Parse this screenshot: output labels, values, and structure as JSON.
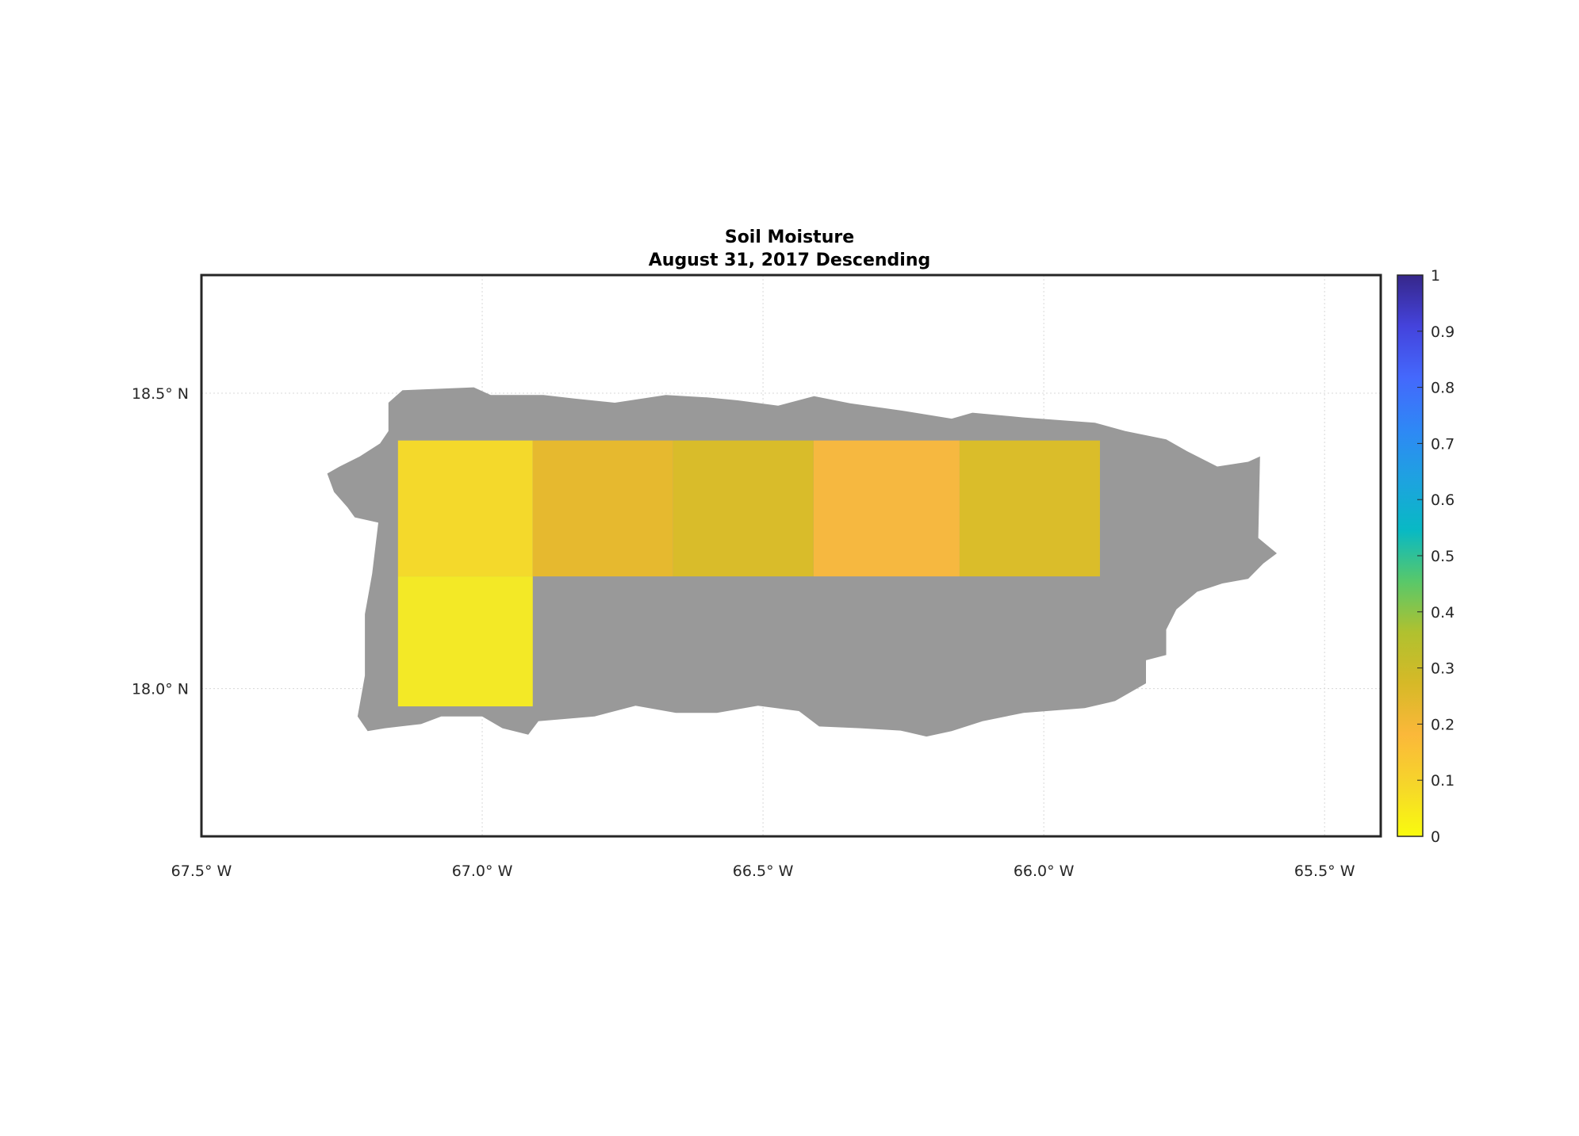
{
  "chart_data": {
    "type": "heatmap",
    "title": "Soil Moisture",
    "subtitle": "August 31, 2017 Descending",
    "xlabel": "",
    "ylabel": "",
    "xlim": [
      -67.5,
      -65.4
    ],
    "ylim": [
      17.75,
      18.7
    ],
    "grid": true,
    "x_ticks": [
      -67.5,
      -67.0,
      -66.5,
      -66.0,
      -65.5
    ],
    "x_tick_labels": [
      "67.5° W",
      "67.0° W",
      "66.5° W",
      "66.0° W",
      "65.5° W"
    ],
    "y_ticks": [
      18.0,
      18.5
    ],
    "y_tick_labels": [
      "18.0° N",
      "18.5° N"
    ],
    "land_color": "#999999",
    "cells": [
      {
        "lon": [
          -67.15,
          -66.91
        ],
        "lat": [
          18.19,
          18.42
        ],
        "value": 0.1,
        "color": "#f4d92b"
      },
      {
        "lon": [
          -66.91,
          -66.66
        ],
        "lat": [
          18.19,
          18.42
        ],
        "value": 0.19,
        "color": "#e6b92f"
      },
      {
        "lon": [
          -66.66,
          -66.41
        ],
        "lat": [
          18.19,
          18.42
        ],
        "value": 0.23,
        "color": "#d9bc2a"
      },
      {
        "lon": [
          -66.41,
          -66.15
        ],
        "lat": [
          18.19,
          18.42
        ],
        "value": 0.16,
        "color": "#f6b840"
      },
      {
        "lon": [
          -66.15,
          -65.9
        ],
        "lat": [
          18.19,
          18.42
        ],
        "value": 0.23,
        "color": "#dabd2a"
      },
      {
        "lon": [
          -67.15,
          -66.91
        ],
        "lat": [
          17.97,
          18.19
        ],
        "value": 0.04,
        "color": "#f3e926"
      }
    ],
    "colorbar": {
      "range": [
        0,
        1
      ],
      "ticks": [
        "0",
        "0.1",
        "0.2",
        "0.3",
        "0.4",
        "0.5",
        "0.6",
        "0.7",
        "0.8",
        "0.9",
        "1"
      ],
      "colors": [
        "#f9fb0e",
        "#f6d62a",
        "#fbb83a",
        "#d6b927",
        "#b0c12f",
        "#58c86a",
        "#08b9c4",
        "#1ea2e0",
        "#2f87f6",
        "#4468fc",
        "#4443dc",
        "#36278a"
      ]
    }
  }
}
